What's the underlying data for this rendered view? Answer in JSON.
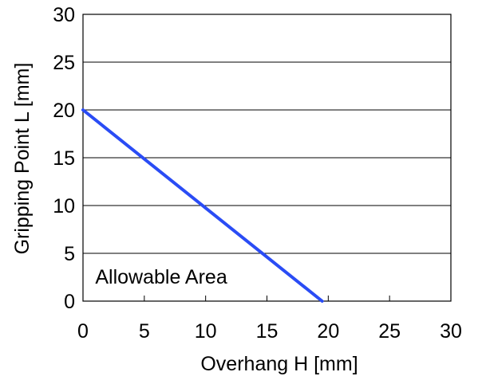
{
  "chart_data": {
    "type": "line",
    "xlabel": "Overhang H [mm]",
    "ylabel": "Gripping Point L [mm]",
    "xlim": [
      0,
      30
    ],
    "ylim": [
      0,
      30
    ],
    "x_ticks": [
      0,
      5,
      10,
      15,
      20,
      25,
      30
    ],
    "y_ticks": [
      0,
      5,
      10,
      15,
      20,
      25,
      30
    ],
    "x_tick_labels": [
      "0",
      "5",
      "10",
      "15",
      "20",
      "25",
      "30"
    ],
    "y_tick_labels": [
      "0",
      "5",
      "10",
      "15",
      "20",
      "25",
      "30"
    ],
    "grid": {
      "horizontal": true,
      "vertical": false
    },
    "series": [
      {
        "x": [
          0,
          19.5
        ],
        "y": [
          20,
          0
        ],
        "color": "#2a4cf5"
      }
    ],
    "annotations": [
      {
        "text": "Allowable Area",
        "x": 1,
        "y": 2.6
      }
    ]
  }
}
